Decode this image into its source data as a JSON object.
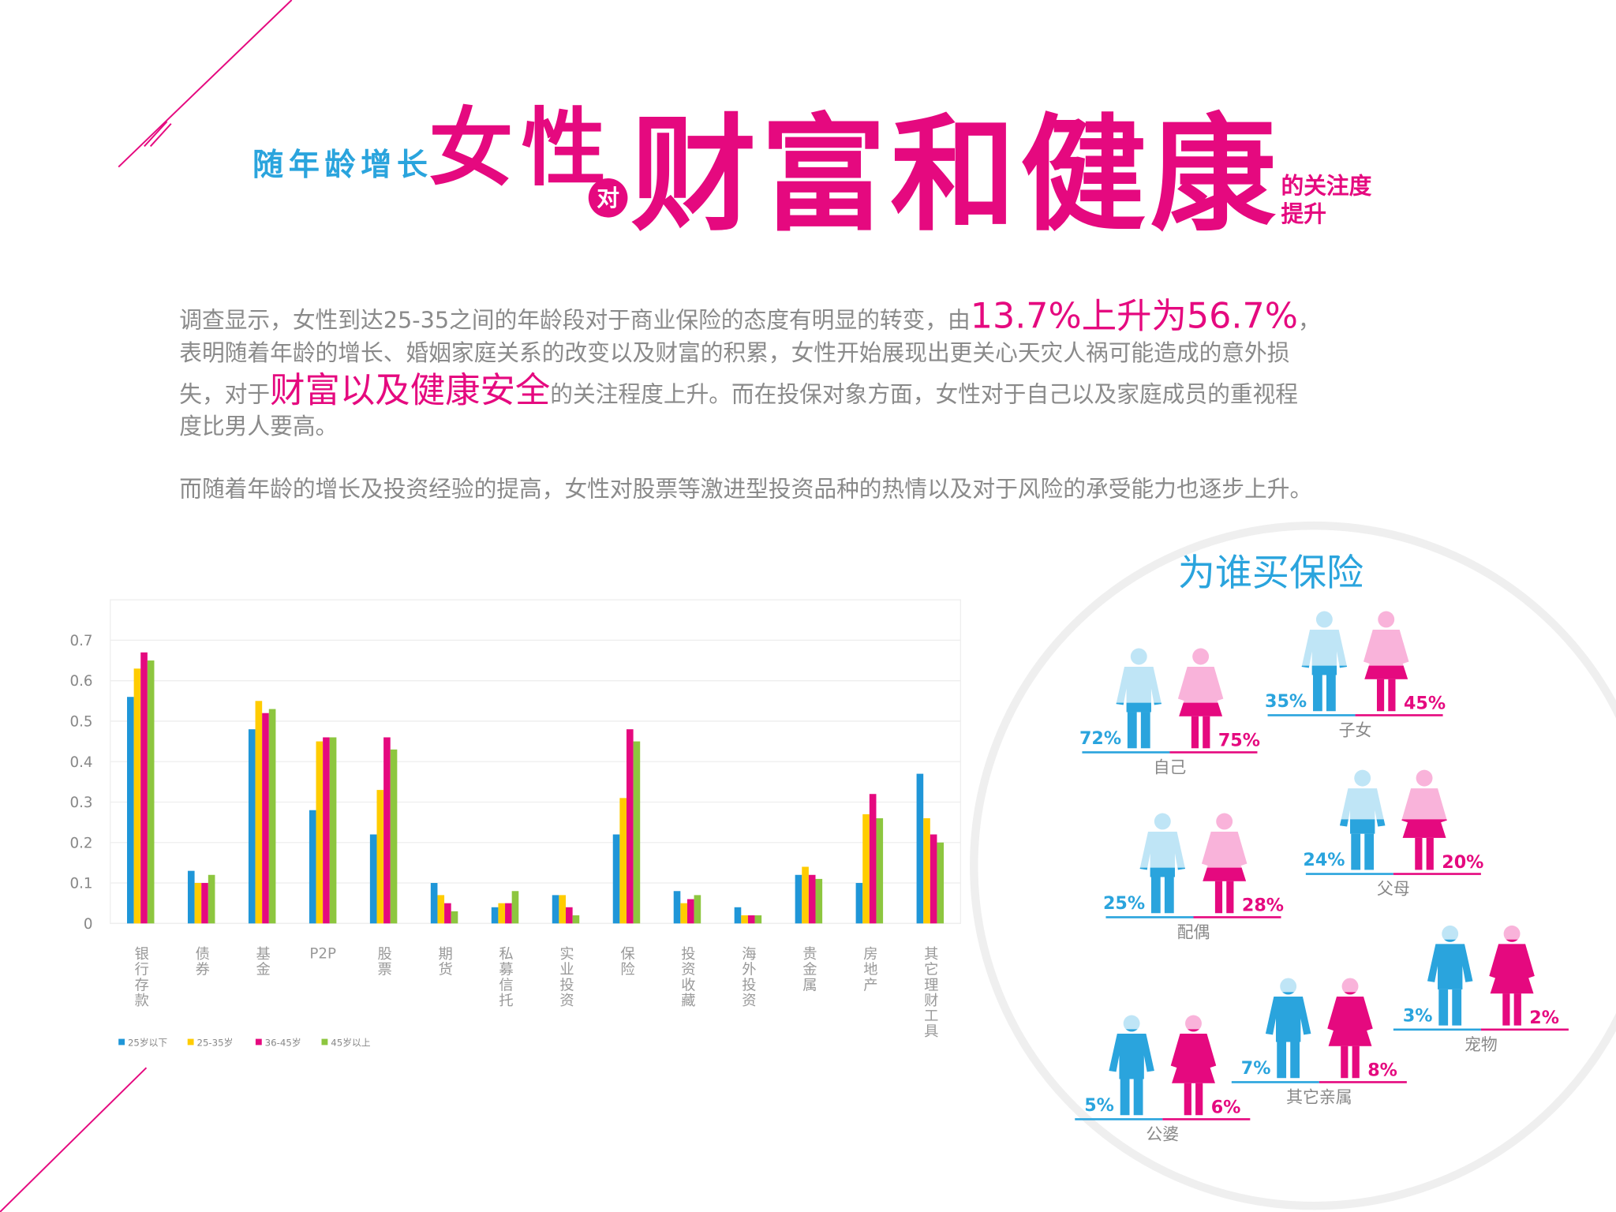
{
  "header": {
    "lead": "随年龄增长",
    "big1": "女性",
    "connector": "对",
    "big2": "财富和健康",
    "tail1": "的关注度",
    "tail2": "提升"
  },
  "paragraphs": [
    [
      [
        {
          "text": "调查显示，女性到达25-35之间的年龄段对于商业保险的态度有明显的转变，由"
        },
        {
          "text": "13.7%上升为56.7%",
          "em": true
        },
        {
          "text": "，"
        }
      ],
      [
        {
          "text": "表明随着年龄的增长、婚姻家庭关系的改变以及财富的积累，女性开始展现出更关心天灾人祸可能造成的意外损"
        }
      ],
      [
        {
          "text": "失，对于"
        },
        {
          "text": "财富以及健康安全",
          "em": true
        },
        {
          "text": "的关注程度上升。而在投保对象方面，女性对于自己以及家庭成员的重视程"
        }
      ],
      [
        {
          "text": "度比男人要高。"
        }
      ]
    ],
    [
      [
        {
          "text": "而随着年龄的增长及投资经验的提高，女性对股票等激进型投资品种的热情以及对于风险的承受能力也逐步上升。"
        }
      ]
    ]
  ],
  "chart_data": {
    "type": "bar",
    "categories": [
      "银行存款",
      "债券",
      "基金",
      "P2P",
      "股票",
      "期货",
      "私募信托",
      "实业投资",
      "保险",
      "投资收藏",
      "海外投资",
      "贵金属",
      "房地产",
      "其它理财工具"
    ],
    "series": [
      {
        "name": "25岁以下",
        "color": "#1f96d8",
        "values": [
          0.56,
          0.13,
          0.48,
          0.28,
          0.22,
          0.1,
          0.04,
          0.07,
          0.22,
          0.08,
          0.04,
          0.12,
          0.1,
          0.37
        ]
      },
      {
        "name": "25-35岁",
        "color": "#ffcc00",
        "values": [
          0.63,
          0.1,
          0.55,
          0.45,
          0.33,
          0.07,
          0.05,
          0.07,
          0.31,
          0.05,
          0.02,
          0.14,
          0.27,
          0.26
        ]
      },
      {
        "name": "36-45岁",
        "color": "#e5097f",
        "values": [
          0.67,
          0.1,
          0.52,
          0.46,
          0.46,
          0.05,
          0.05,
          0.04,
          0.48,
          0.06,
          0.02,
          0.12,
          0.32,
          0.22
        ]
      },
      {
        "name": "45岁以上",
        "color": "#8dc63f",
        "values": [
          0.65,
          0.12,
          0.53,
          0.46,
          0.43,
          0.03,
          0.08,
          0.02,
          0.45,
          0.07,
          0.02,
          0.11,
          0.26,
          0.2
        ]
      }
    ],
    "ylim": [
      0,
      0.8
    ],
    "yticks": [
      0,
      0.1,
      0.2,
      0.3,
      0.4,
      0.5,
      0.6,
      0.7
    ],
    "grid": true,
    "legend": "bottom-left"
  },
  "insurance": {
    "title": "为谁买保险",
    "groups": [
      {
        "label": "自己",
        "male": "72%",
        "female": "75%"
      },
      {
        "label": "子女",
        "male": "35%",
        "female": "45%"
      },
      {
        "label": "配偶",
        "male": "25%",
        "female": "28%"
      },
      {
        "label": "父母",
        "male": "24%",
        "female": "20%"
      },
      {
        "label": "宠物",
        "male": "3%",
        "female": "2%"
      },
      {
        "label": "其它亲属",
        "male": "7%",
        "female": "8%"
      },
      {
        "label": "公婆",
        "male": "5%",
        "female": "6%"
      }
    ]
  }
}
